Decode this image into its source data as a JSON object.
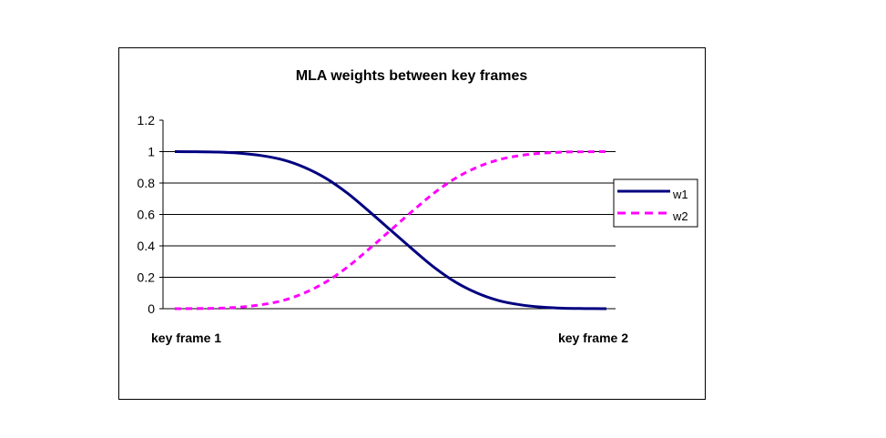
{
  "chart_data": {
    "type": "line",
    "title": "MLA weights between key frames",
    "categories": [
      "key frame 1",
      "key frame 2"
    ],
    "x": [
      0,
      0.05,
      0.1,
      0.15,
      0.2,
      0.25,
      0.3,
      0.35,
      0.4,
      0.45,
      0.5,
      0.55,
      0.6,
      0.65,
      0.7,
      0.75,
      0.8,
      0.85,
      0.9,
      0.95,
      1
    ],
    "series": [
      {
        "name": "w1",
        "color": "#000080",
        "style": "solid",
        "values": [
          1,
          0.999,
          0.997,
          0.99,
          0.975,
          0.948,
          0.9,
          0.83,
          0.735,
          0.62,
          0.5,
          0.38,
          0.265,
          0.17,
          0.1,
          0.052,
          0.025,
          0.01,
          0.003,
          0.001,
          0
        ]
      },
      {
        "name": "w2",
        "color": "#FF00FF",
        "style": "dashed",
        "values": [
          0,
          0.001,
          0.003,
          0.01,
          0.025,
          0.052,
          0.1,
          0.17,
          0.265,
          0.38,
          0.5,
          0.62,
          0.735,
          0.83,
          0.9,
          0.948,
          0.975,
          0.99,
          0.997,
          0.999,
          1
        ]
      }
    ],
    "yticks": [
      "0",
      "0.2",
      "0.4",
      "0.6",
      "0.8",
      "1",
      "1.2"
    ],
    "ylim": [
      0,
      1.2
    ],
    "grid": true,
    "legend_position": "right"
  }
}
